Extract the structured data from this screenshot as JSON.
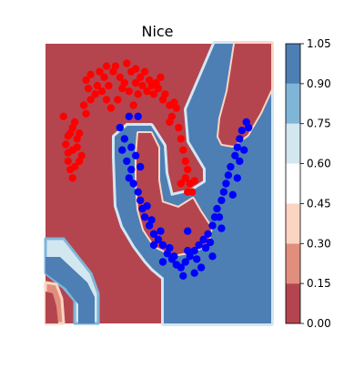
{
  "chart_data": {
    "type": "contourf+scatter",
    "title": "Nice",
    "xlabel": "",
    "ylabel": "",
    "grid": false,
    "colormap": "RdBu",
    "colorbar": {
      "levels": [
        0.0,
        0.15,
        0.3,
        0.45,
        0.6,
        0.75,
        0.9,
        1.05
      ],
      "tick_labels": [
        "0.00",
        "0.15",
        "0.30",
        "0.45",
        "0.60",
        "0.75",
        "0.90",
        "1.05"
      ],
      "colors": [
        "#b4454f",
        "#e28e7d",
        "#fbd5c2",
        "#ffffff",
        "#d3e7f1",
        "#7fb6d8",
        "#4d7fb5"
      ]
    },
    "decision_regions": {
      "low_class_color": "#b4454f",
      "high_class_color": "#4d7fb5"
    },
    "series": [
      {
        "color": "#ff0000",
        "points": [
          [
            0.12,
            0.52
          ],
          [
            0.11,
            0.55
          ],
          [
            0.1,
            0.58
          ],
          [
            0.1,
            0.61
          ],
          [
            0.09,
            0.64
          ],
          [
            0.1,
            0.67
          ],
          [
            0.12,
            0.7
          ],
          [
            0.13,
            0.72
          ],
          [
            0.08,
            0.74
          ],
          [
            0.14,
            0.66
          ],
          [
            0.16,
            0.6
          ],
          [
            0.13,
            0.56
          ],
          [
            0.12,
            0.62
          ],
          [
            0.15,
            0.68
          ],
          [
            0.18,
            0.75
          ],
          [
            0.17,
            0.78
          ],
          [
            0.2,
            0.8
          ],
          [
            0.19,
            0.84
          ],
          [
            0.18,
            0.87
          ],
          [
            0.22,
            0.82
          ],
          [
            0.2,
            0.89
          ],
          [
            0.23,
            0.85
          ],
          [
            0.24,
            0.9
          ],
          [
            0.26,
            0.88
          ],
          [
            0.27,
            0.92
          ],
          [
            0.28,
            0.85
          ],
          [
            0.3,
            0.9
          ],
          [
            0.31,
            0.92
          ],
          [
            0.33,
            0.88
          ],
          [
            0.35,
            0.86
          ],
          [
            0.36,
            0.93
          ],
          [
            0.38,
            0.9
          ],
          [
            0.4,
            0.91
          ],
          [
            0.42,
            0.88
          ],
          [
            0.44,
            0.9
          ],
          [
            0.43,
            0.85
          ],
          [
            0.45,
            0.83
          ],
          [
            0.47,
            0.85
          ],
          [
            0.48,
            0.82
          ],
          [
            0.5,
            0.84
          ],
          [
            0.52,
            0.8
          ],
          [
            0.53,
            0.82
          ],
          [
            0.55,
            0.78
          ],
          [
            0.56,
            0.74
          ],
          [
            0.57,
            0.79
          ],
          [
            0.58,
            0.77
          ],
          [
            0.55,
            0.72
          ],
          [
            0.59,
            0.7
          ],
          [
            0.6,
            0.66
          ],
          [
            0.61,
            0.62
          ],
          [
            0.62,
            0.58
          ],
          [
            0.63,
            0.55
          ],
          [
            0.62,
            0.52
          ],
          [
            0.64,
            0.5
          ],
          [
            0.65,
            0.47
          ],
          [
            0.66,
            0.51
          ],
          [
            0.63,
            0.47
          ],
          [
            0.6,
            0.5
          ],
          [
            0.25,
            0.83
          ],
          [
            0.27,
            0.8
          ],
          [
            0.29,
            0.77
          ],
          [
            0.32,
            0.8
          ],
          [
            0.34,
            0.84
          ],
          [
            0.37,
            0.83
          ],
          [
            0.4,
            0.86
          ],
          [
            0.46,
            0.87
          ],
          [
            0.49,
            0.86
          ],
          [
            0.51,
            0.88
          ],
          [
            0.41,
            0.82
          ],
          [
            0.39,
            0.78
          ],
          [
            0.14,
            0.63
          ],
          [
            0.11,
            0.68
          ],
          [
            0.15,
            0.58
          ]
        ]
      },
      {
        "color": "#0000ff",
        "points": [
          [
            0.37,
            0.74
          ],
          [
            0.41,
            0.74
          ],
          [
            0.33,
            0.7
          ],
          [
            0.35,
            0.66
          ],
          [
            0.34,
            0.62
          ],
          [
            0.36,
            0.58
          ],
          [
            0.38,
            0.55
          ],
          [
            0.37,
            0.52
          ],
          [
            0.39,
            0.5
          ],
          [
            0.41,
            0.47
          ],
          [
            0.42,
            0.44
          ],
          [
            0.43,
            0.41
          ],
          [
            0.44,
            0.38
          ],
          [
            0.46,
            0.35
          ],
          [
            0.48,
            0.32
          ],
          [
            0.5,
            0.3
          ],
          [
            0.52,
            0.28
          ],
          [
            0.54,
            0.25
          ],
          [
            0.56,
            0.23
          ],
          [
            0.58,
            0.21
          ],
          [
            0.6,
            0.2
          ],
          [
            0.62,
            0.22
          ],
          [
            0.64,
            0.24
          ],
          [
            0.66,
            0.26
          ],
          [
            0.68,
            0.28
          ],
          [
            0.7,
            0.3
          ],
          [
            0.72,
            0.32
          ],
          [
            0.74,
            0.35
          ],
          [
            0.75,
            0.38
          ],
          [
            0.76,
            0.41
          ],
          [
            0.78,
            0.44
          ],
          [
            0.79,
            0.47
          ],
          [
            0.8,
            0.5
          ],
          [
            0.81,
            0.53
          ],
          [
            0.82,
            0.56
          ],
          [
            0.84,
            0.6
          ],
          [
            0.85,
            0.63
          ],
          [
            0.86,
            0.66
          ],
          [
            0.87,
            0.69
          ],
          [
            0.4,
            0.6
          ],
          [
            0.42,
            0.56
          ],
          [
            0.38,
            0.63
          ],
          [
            0.45,
            0.42
          ],
          [
            0.47,
            0.37
          ],
          [
            0.51,
            0.33
          ],
          [
            0.55,
            0.27
          ],
          [
            0.57,
            0.24
          ],
          [
            0.63,
            0.26
          ],
          [
            0.67,
            0.23
          ],
          [
            0.71,
            0.27
          ],
          [
            0.73,
            0.29
          ],
          [
            0.77,
            0.38
          ],
          [
            0.83,
            0.46
          ],
          [
            0.85,
            0.52
          ],
          [
            0.86,
            0.58
          ],
          [
            0.88,
            0.62
          ],
          [
            0.9,
            0.7
          ],
          [
            0.89,
            0.72
          ],
          [
            0.63,
            0.33
          ],
          [
            0.48,
            0.28
          ],
          [
            0.52,
            0.22
          ],
          [
            0.61,
            0.17
          ],
          [
            0.66,
            0.18
          ],
          [
            0.69,
            0.2
          ],
          [
            0.74,
            0.24
          ],
          [
            0.78,
            0.34
          ]
        ]
      }
    ]
  }
}
